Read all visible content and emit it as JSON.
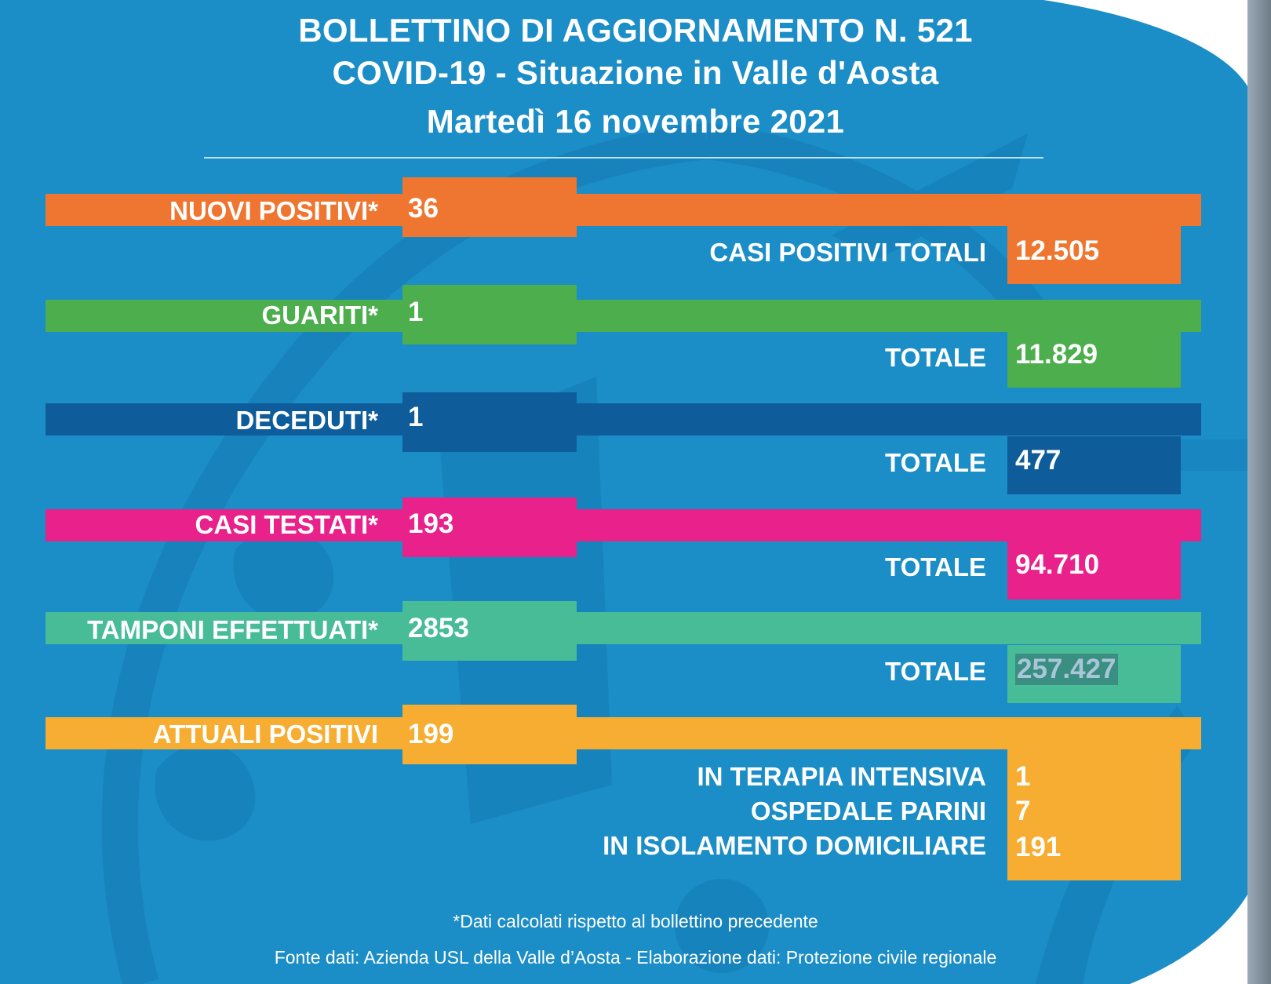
{
  "header": {
    "line1": "BOLLETTINO DI AGGIORNAMENTO N. 521",
    "line2": "COVID-19 - Situazione in Valle d'Aosta",
    "line3": "Martedì 16 novembre 2021"
  },
  "rows": [
    {
      "label": "NUOVI POSITIVI*",
      "value": "36",
      "total_label": "CASI POSITIVI TOTALI",
      "total_value": "12.505",
      "color": "#ef7631"
    },
    {
      "label": "GUARITI*",
      "value": "1",
      "total_label": "TOTALE",
      "total_value": "11.829",
      "color": "#4cae4c"
    },
    {
      "label": "DECEDUTI*",
      "value": "1",
      "total_label": "TOTALE",
      "total_value": "477",
      "color": "#0f5c9b"
    },
    {
      "label": "CASI TESTATI*",
      "value": "193",
      "total_label": "TOTALE",
      "total_value": "94.710",
      "color": "#e8218b"
    },
    {
      "label": "TAMPONI EFFETTUATI*",
      "value": "2853",
      "total_label": "TOTALE",
      "total_value": "257.427",
      "color": "#48bc96"
    },
    {
      "label": "ATTUALI POSITIVI",
      "value": "199",
      "color": "#f7ad31"
    }
  ],
  "attuali_breakdown": [
    {
      "label": "IN TERAPIA INTENSIVA",
      "value": "1"
    },
    {
      "label": "OSPEDALE PARINI",
      "value": "7"
    },
    {
      "label": "IN ISOLAMENTO DOMICILIARE",
      "value": "191"
    }
  ],
  "footer": {
    "note": "*Dati calcolati rispetto al bollettino precedente",
    "source": "Fonte dati: Azienda USL della Valle d’Aosta - Elaborazione dati: Protezione civile regionale"
  },
  "colors": {
    "background_blue": "#1a8cc6",
    "emblem_blue": "#167fb8"
  }
}
